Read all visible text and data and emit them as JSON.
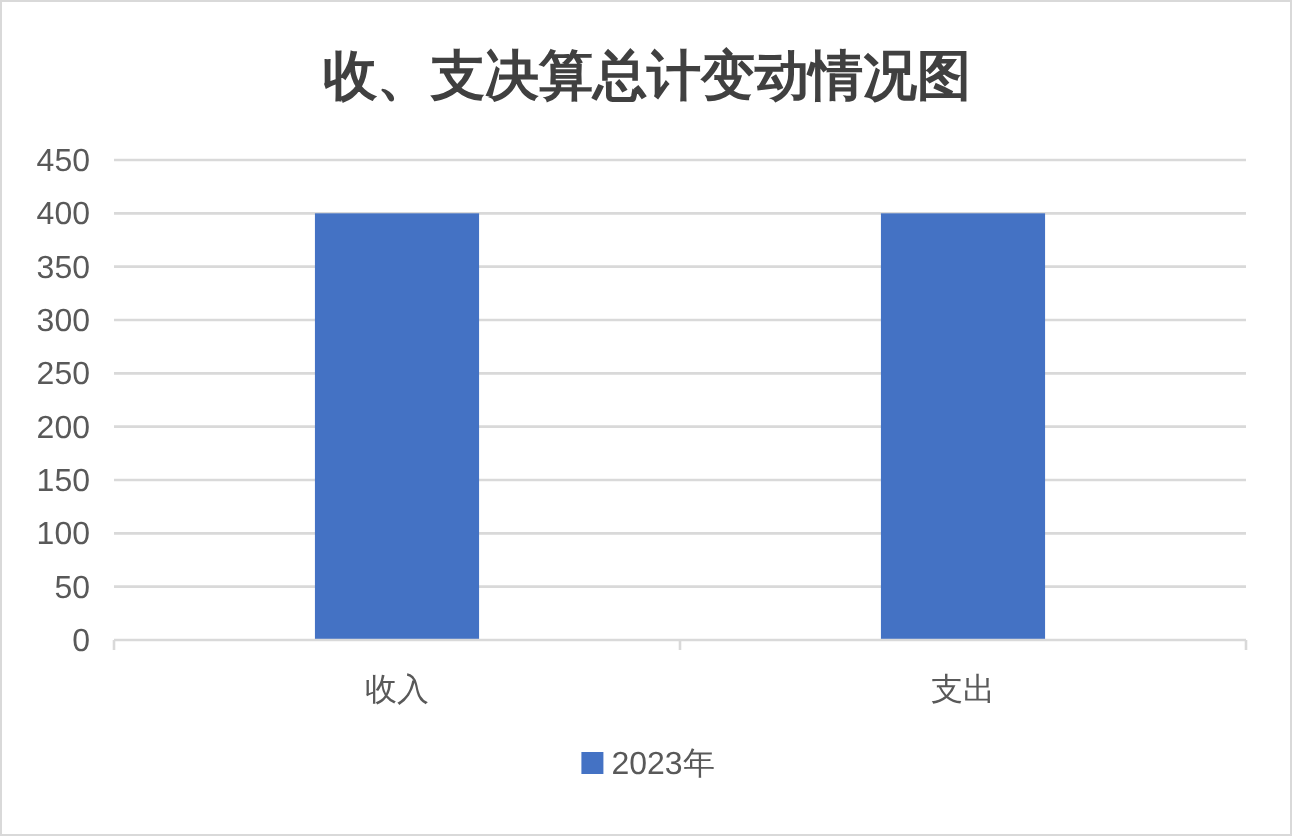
{
  "chart_data": {
    "type": "bar",
    "title": "收、支决算总计变动情况图",
    "categories": [
      "收入",
      "支出"
    ],
    "series": [
      {
        "name": "2023年",
        "color": "#4472c4",
        "values": [
          400,
          400
        ]
      }
    ],
    "ylim": [
      0,
      450
    ],
    "yticks": [
      0,
      50,
      100,
      150,
      200,
      250,
      300,
      350,
      400,
      450
    ],
    "grid": "y",
    "legend": "bottom"
  }
}
